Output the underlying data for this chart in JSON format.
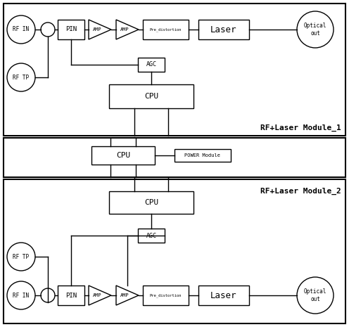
{
  "bg_color": "#ffffff",
  "module1_label": "RF+Laser Module_1",
  "module2_label": "RF+Laser Module_2",
  "power_module_label": "POWER Module",
  "cpu_label": "CPU",
  "agc_label": "AGC",
  "pin_label": "PIN",
  "amp_label": "AMP",
  "laser_label": "Laser",
  "optical_label": "Optical\nout",
  "rf_in_label": "RF IN",
  "rf_tp_label": "RF TP",
  "pre_dist_label": "Pre_distortion",
  "lw": 1.0,
  "border_lw": 1.5
}
